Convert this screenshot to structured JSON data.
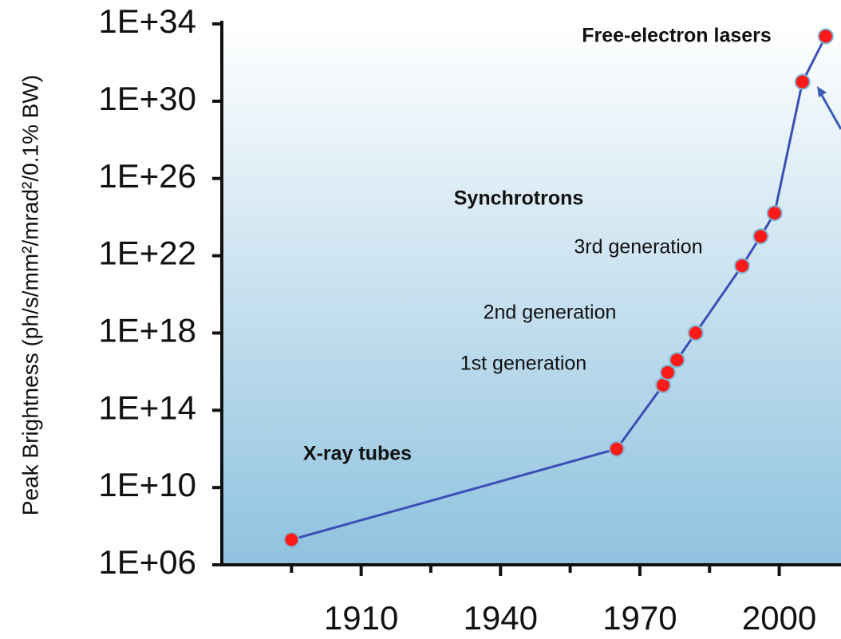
{
  "chart_data": {
    "type": "line",
    "y_label": "Peak Brightness (ph/s/mm²/mrad²/0.1% BW)",
    "log_scale_y": true,
    "x": [
      1895,
      1965,
      1975,
      1976,
      1978,
      1982,
      1992,
      1996,
      1999,
      2005,
      2010
    ],
    "series": [
      {
        "color": "#3b4fb5",
        "marker_color": "#ff1a1a",
        "values": [
          20000000.0,
          1000000000000.0,
          2000000000000000.0,
          9000000000000000.0,
          4e+16,
          1e+18,
          3e+21,
          1e+23,
          1.6e+24,
          1e+31,
          2.3e+33
        ]
      }
    ],
    "xlim": [
      1880,
      2013.3
    ],
    "xticks": [
      1910,
      1940,
      1970,
      2000
    ],
    "xminor_ticks": [
      1895,
      1925,
      1955,
      1985
    ],
    "ylim": [
      1000000.0,
      1e+34
    ],
    "yticks": [
      {
        "value": 1000000.0,
        "label": "1E+06"
      },
      {
        "value": 10000000000.0,
        "label": "1E+10"
      },
      {
        "value": 100000000000000.0,
        "label": "1E+14"
      },
      {
        "value": 1e+18,
        "label": "1E+18"
      },
      {
        "value": 1e+22,
        "label": "1E+22"
      },
      {
        "value": 1e+26,
        "label": "1E+26"
      },
      {
        "value": 1e+30,
        "label": "1E+30"
      },
      {
        "value": 1e+34,
        "label": "1E+34"
      }
    ],
    "annotations": [
      "Free-electron lasers",
      "Synchrotrons",
      "3rd generation",
      "2nd generation",
      "1st generation",
      "X-ray tubes"
    ]
  }
}
